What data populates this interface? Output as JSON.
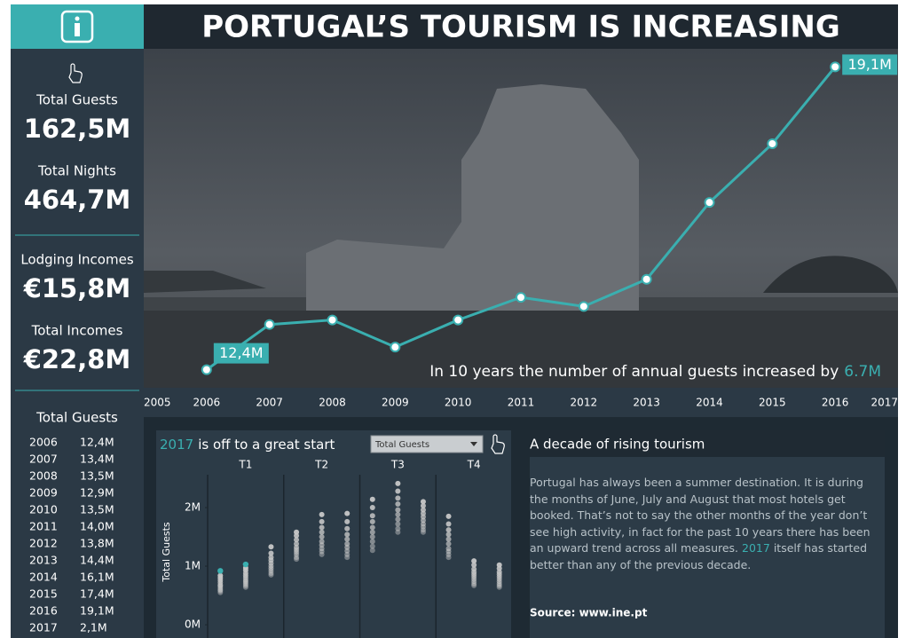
{
  "header": {
    "title": "PORTUGAL’S TOURISM IS INCREASING"
  },
  "kpis": [
    {
      "label": "Total Guests",
      "value": "162,5M"
    },
    {
      "label": "Total Nights",
      "value": "464,7M"
    },
    {
      "label": "Lodging Incomes",
      "value": "€15,8M"
    },
    {
      "label": "Total Incomes",
      "value": "€22,8M"
    }
  ],
  "guests_table": {
    "title": "Total Guests",
    "rows": [
      [
        "2006",
        "12,4M"
      ],
      [
        "2007",
        "13,4M"
      ],
      [
        "2008",
        "13,5M"
      ],
      [
        "2009",
        "12,9M"
      ],
      [
        "2010",
        "13,5M"
      ],
      [
        "2011",
        "14,0M"
      ],
      [
        "2012",
        "13,8M"
      ],
      [
        "2013",
        "14,4M"
      ],
      [
        "2014",
        "16,1M"
      ],
      [
        "2015",
        "17,4M"
      ],
      [
        "2016",
        "19,1M"
      ],
      [
        "2017",
        "2,1M"
      ]
    ]
  },
  "chart_data": [
    {
      "type": "line",
      "x": [
        2006,
        2007,
        2008,
        2009,
        2010,
        2011,
        2012,
        2013,
        2014,
        2015,
        2016
      ],
      "values": [
        12.4,
        13.4,
        13.5,
        12.9,
        13.5,
        14.0,
        13.8,
        14.4,
        16.1,
        17.4,
        19.1
      ],
      "value_labels": [
        "12,4M",
        null,
        null,
        null,
        null,
        null,
        null,
        null,
        null,
        null,
        "19,1M"
      ],
      "color": "#3aafb0",
      "xlim": [
        2005,
        2017
      ],
      "xticks": [
        2005,
        2006,
        2007,
        2008,
        2009,
        2010,
        2011,
        2012,
        2013,
        2014,
        2015,
        2016,
        2017
      ],
      "ylim": [
        12,
        19.5
      ],
      "annotation": "In  10 years the number of annual guests increased by",
      "annotation_highlight": "6.7M"
    },
    {
      "type": "strip",
      "title_highlight": "2017",
      "title": "is off to a great start",
      "dropdown": "Total Guests",
      "y_label": "Total Guests",
      "categories": [
        "T1",
        "T2",
        "T3",
        "T4"
      ],
      "ylim": [
        -0.12,
        2.56
      ],
      "yticks": [
        {
          "value": 0,
          "label": "0M"
        },
        {
          "value": 1,
          "label": "1M"
        },
        {
          "value": 2,
          "label": "2M"
        }
      ],
      "color": "#c8c8c8",
      "highlight_color": "#3aafb0",
      "columns": [
        {
          "values": [
            0.55,
            0.58,
            0.6,
            0.63,
            0.66,
            0.68,
            0.72,
            0.76,
            0.8,
            0.84
          ],
          "highlight": 0.92
        },
        {
          "values": [
            0.64,
            0.67,
            0.7,
            0.73,
            0.76,
            0.8,
            0.84,
            0.88,
            0.93,
            0.97
          ],
          "highlight": 1.03
        },
        {
          "values": [
            0.85,
            0.88,
            0.92,
            0.96,
            1.0,
            1.05,
            1.1,
            1.15,
            1.22,
            1.33
          ],
          "highlight": null
        },
        {
          "values": [
            1.12,
            1.15,
            1.2,
            1.24,
            1.28,
            1.32,
            1.38,
            1.45,
            1.52,
            1.58
          ],
          "highlight": null
        },
        {
          "values": [
            1.2,
            1.25,
            1.3,
            1.36,
            1.42,
            1.5,
            1.58,
            1.66,
            1.76,
            1.88
          ],
          "highlight": null
        },
        {
          "values": [
            1.15,
            1.2,
            1.26,
            1.32,
            1.38,
            1.46,
            1.54,
            1.64,
            1.76,
            1.9
          ],
          "highlight": null
        },
        {
          "values": [
            1.27,
            1.34,
            1.42,
            1.5,
            1.58,
            1.66,
            1.76,
            1.86,
            2.0,
            2.14
          ],
          "highlight": null
        },
        {
          "values": [
            1.58,
            1.64,
            1.72,
            1.8,
            1.88,
            1.96,
            2.06,
            2.16,
            2.28,
            2.41
          ],
          "highlight": null
        },
        {
          "values": [
            1.58,
            1.62,
            1.67,
            1.72,
            1.78,
            1.84,
            1.9,
            1.96,
            2.03,
            2.1
          ],
          "highlight": null
        },
        {
          "values": [
            1.15,
            1.2,
            1.25,
            1.3,
            1.38,
            1.46,
            1.54,
            1.62,
            1.72,
            1.85
          ],
          "highlight": null
        },
        {
          "values": [
            0.67,
            0.7,
            0.74,
            0.78,
            0.82,
            0.86,
            0.9,
            0.95,
            1.02,
            1.09
          ],
          "highlight": null
        },
        {
          "values": [
            0.64,
            0.67,
            0.7,
            0.74,
            0.78,
            0.82,
            0.86,
            0.9,
            0.96,
            1.02
          ],
          "highlight": null
        }
      ]
    }
  ],
  "text_panel": {
    "title": "A decade of rising tourism",
    "body_before": "Portugal has always been a summer destination. It is during the months of June, July and August that most hotels get booked. That’s not to say the other months of the year don’t see high activity, in fact for the past 10 years there has been an upward trend across all measures.",
    "body_highlight": "2017",
    "body_after": "itself has started better than any of the previous decade.",
    "source": "Source: www.ine.pt"
  }
}
